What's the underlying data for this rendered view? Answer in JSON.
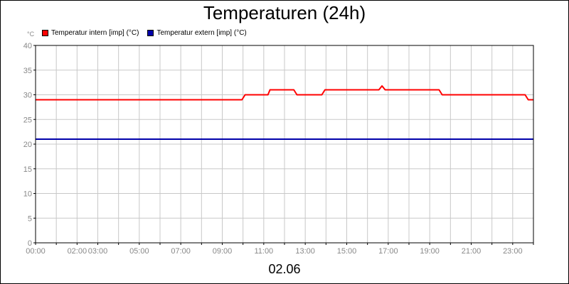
{
  "chart_data": {
    "type": "line",
    "title": "Temperaturen (24h)",
    "ylabel": "°C",
    "xlabel_date": "02.06",
    "xlim": [
      0,
      24
    ],
    "ylim": [
      0,
      40
    ],
    "y_ticks": [
      0,
      5,
      10,
      15,
      20,
      25,
      30,
      35,
      40
    ],
    "x_ticks": [
      {
        "x": 0,
        "label": "00:00"
      },
      {
        "x": 2,
        "label": "02:00"
      },
      {
        "x": 3,
        "label": "03:00"
      },
      {
        "x": 5,
        "label": "05:00"
      },
      {
        "x": 7,
        "label": "07:00"
      },
      {
        "x": 9,
        "label": "09:00"
      },
      {
        "x": 11,
        "label": "11:00"
      },
      {
        "x": 13,
        "label": "13:00"
      },
      {
        "x": 15,
        "label": "15:00"
      },
      {
        "x": 17,
        "label": "17:00"
      },
      {
        "x": 19,
        "label": "19:00"
      },
      {
        "x": 21,
        "label": "21:00"
      },
      {
        "x": 23,
        "label": "23:00"
      }
    ],
    "grid": true,
    "legend_position": "top-left",
    "series": [
      {
        "name": "Temperatur intern [imp] (°C)",
        "color": "#ff0000",
        "points": [
          [
            0,
            29
          ],
          [
            9.95,
            29
          ],
          [
            10.1,
            30
          ],
          [
            11.2,
            30
          ],
          [
            11.3,
            31
          ],
          [
            12.45,
            31
          ],
          [
            12.6,
            30
          ],
          [
            13.8,
            30
          ],
          [
            13.95,
            31
          ],
          [
            16.55,
            31
          ],
          [
            16.7,
            31.8
          ],
          [
            16.85,
            31
          ],
          [
            19.45,
            31
          ],
          [
            19.6,
            30
          ],
          [
            23.6,
            30
          ],
          [
            23.75,
            29
          ],
          [
            24,
            29
          ]
        ]
      },
      {
        "name": "Temperatur extern [imp] (°C)",
        "color": "#0000aa",
        "points": [
          [
            0,
            21
          ],
          [
            24,
            21
          ]
        ]
      }
    ]
  }
}
